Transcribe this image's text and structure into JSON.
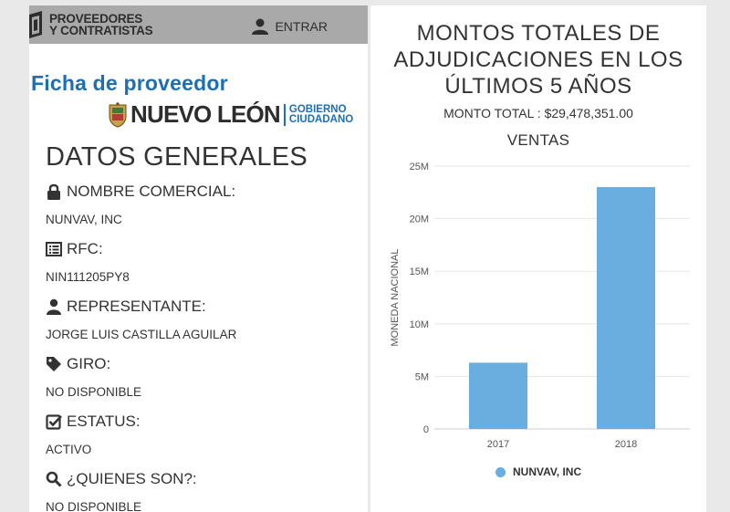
{
  "header": {
    "brand_line1": "PROVEEDORES",
    "brand_line2": "Y CONTRATISTAS",
    "login_label": "ENTRAR"
  },
  "ficha_title": "Ficha de proveedor",
  "government": {
    "name": "NUEVO LEÓN",
    "tagline_line1": "GOBIERNO",
    "tagline_line2": "CIUDADANO"
  },
  "section_title": "DATOS GENERALES",
  "fields": [
    {
      "icon": "lock-icon",
      "label": "NOMBRE COMERCIAL:",
      "value": "NUNVAV, INC"
    },
    {
      "icon": "list-icon",
      "label": "RFC:",
      "value": "NIN111205PY8"
    },
    {
      "icon": "person-icon",
      "label": "REPRESENTANTE:",
      "value": "JORGE LUIS CASTILLA AGUILAR"
    },
    {
      "icon": "tag-icon",
      "label": "GIRO:",
      "value": "NO DISPONIBLE"
    },
    {
      "icon": "checkbox-icon",
      "label": "ESTATUS:",
      "value": "ACTIVO"
    },
    {
      "icon": "search-icon",
      "label": "¿QUIENES SON?:",
      "value": "NO DISPONIBLE"
    }
  ],
  "colors": {
    "accent": "#1c6fb4",
    "bar": "#6aaddf",
    "topbar": "#a9a9a9"
  },
  "chart_data": {
    "type": "bar",
    "title_lines": [
      "MONTOS TOTALES DE",
      "ADJUDICACIONES EN LOS",
      "ÚLTIMOS 5 AÑOS"
    ],
    "total_text": "MONTO TOTAL : $29,478,351.00",
    "subtitle": "VENTAS",
    "categories": [
      "2017",
      "2018"
    ],
    "series": [
      {
        "name": "NUNVAV, INC",
        "values": [
          6300000,
          23000000
        ]
      }
    ],
    "ylabel": "MONEDA NACIONAL",
    "ylim": [
      0,
      25000000
    ],
    "yticks": [
      0,
      5000000,
      10000000,
      15000000,
      20000000,
      25000000
    ],
    "ytick_labels": [
      "0",
      "5M",
      "10M",
      "15M",
      "20M",
      "25M"
    ],
    "grid": true,
    "legend": "bottom"
  }
}
